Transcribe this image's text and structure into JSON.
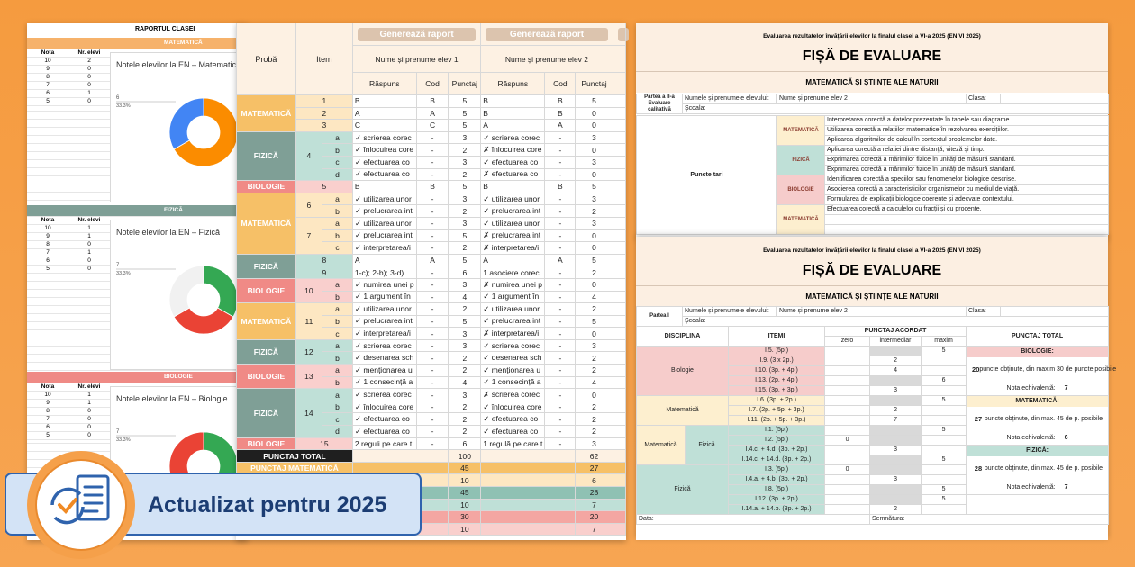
{
  "badge": "Actualizat pentru 2025",
  "class_report": {
    "title": "RAPORTUL CLASEI",
    "col_grade": "Nota",
    "col_count": "Nr. elevi",
    "sections": [
      {
        "name": "MATEMATICĂ",
        "color": "#f6b26b",
        "chart_data": {
          "type": "pie",
          "title": "Notele elevilor la EN – Matematică",
          "callout": [
            "6",
            "33.3%"
          ],
          "categories": [
            10,
            9,
            8,
            7,
            6,
            5
          ],
          "values": [
            2,
            0,
            0,
            0,
            1,
            0
          ],
          "colors": [
            "#fb8c00",
            "#ea4335",
            "#fbbc04",
            "#34a853",
            "#4285f4",
            "#9e9e9e"
          ]
        }
      },
      {
        "name": "FIZICĂ",
        "color": "#7f9f96",
        "chart_data": {
          "type": "pie",
          "title": "Notele elevilor la EN – Fizică",
          "callout": [
            "7",
            "33.3%"
          ],
          "categories": [
            10,
            9,
            8,
            7,
            6,
            5
          ],
          "values": [
            1,
            1,
            0,
            1,
            0,
            0
          ],
          "colors": [
            "#34a853",
            "#ea4335",
            "#fbbc04",
            "#f1f1f1",
            "#4285f4",
            "#9e9e9e"
          ]
        }
      },
      {
        "name": "BIOLOGIE",
        "color": "#ef8a85",
        "chart_data": {
          "type": "pie",
          "title": "Notele elevilor la EN – Biologie",
          "callout": [
            "7",
            "33.3%"
          ],
          "categories": [
            10,
            9,
            8,
            7,
            6,
            5
          ],
          "values": [
            1,
            1,
            0,
            0,
            0,
            0
          ],
          "colors": [
            "#34a853",
            "#ea4335",
            "#fbbc04",
            "#f1f1f1",
            "#4285f4",
            "#9e9e9e"
          ]
        }
      }
    ]
  },
  "score_table": {
    "buttons": [
      "Generează raport",
      "Generează raport"
    ],
    "col_subject": "Probă",
    "col_item": "Item",
    "students": [
      {
        "name": "Nume și prenume elev 1"
      },
      {
        "name": "Nume și prenume elev 2"
      }
    ],
    "col_answer": "Răspuns",
    "col_code": "Cod",
    "col_points": "Punctaj",
    "subject_colors": {
      "MATEMATICĂ": [
        "#f6c067",
        "#fde7c2"
      ],
      "FIZICĂ": [
        "#7f9f96",
        "#bfe0d7"
      ],
      "BIOLOGIE": [
        "#f08a86",
        "#f9cfcd"
      ]
    },
    "rows": [
      {
        "subject": "MATEMATICĂ",
        "item": 1,
        "part": null,
        "answers": [
          [
            "B",
            "B",
            5
          ],
          [
            "B",
            "B",
            5
          ]
        ]
      },
      {
        "subject": null,
        "item": 2,
        "part": null,
        "answers": [
          [
            "A",
            "A",
            5
          ],
          [
            "B",
            "B",
            0
          ]
        ]
      },
      {
        "subject": null,
        "item": 3,
        "part": null,
        "answers": [
          [
            "C",
            "C",
            5
          ],
          [
            "A",
            "A",
            0
          ]
        ]
      },
      {
        "subject": "FIZICĂ",
        "item": 4,
        "part": "a",
        "answers": [
          [
            "✓ scrierea corec",
            "-",
            3
          ],
          [
            "✓ scrierea corec",
            "-",
            3
          ]
        ]
      },
      {
        "subject": null,
        "item": null,
        "part": "b",
        "answers": [
          [
            "✓ înlocuirea core",
            "-",
            2
          ],
          [
            "✗ înlocuirea core",
            "-",
            0
          ]
        ]
      },
      {
        "subject": null,
        "item": null,
        "part": "c",
        "answers": [
          [
            "✓ efectuarea co",
            "-",
            3
          ],
          [
            "✓ efectuarea co",
            "-",
            3
          ]
        ]
      },
      {
        "subject": null,
        "item": null,
        "part": "d",
        "answers": [
          [
            "✓ efectuarea co",
            "-",
            2
          ],
          [
            "✗ efectuarea co",
            "-",
            0
          ]
        ]
      },
      {
        "subject": "BIOLOGIE",
        "item": 5,
        "part": null,
        "answers": [
          [
            "B",
            "B",
            5
          ],
          [
            "B",
            "B",
            5
          ]
        ]
      },
      {
        "subject": "MATEMATICĂ",
        "item": 6,
        "part": "a",
        "answers": [
          [
            "✓ utilizarea unor",
            "-",
            3
          ],
          [
            "✓ utilizarea unor",
            "-",
            3
          ]
        ]
      },
      {
        "subject": null,
        "item": null,
        "part": "b",
        "answers": [
          [
            "✓ prelucrarea int",
            "-",
            2
          ],
          [
            "✓ prelucrarea int",
            "-",
            2
          ]
        ]
      },
      {
        "subject": null,
        "item": 7,
        "part": "a",
        "answers": [
          [
            "✓ utilizarea unor",
            "-",
            3
          ],
          [
            "✓ utilizarea unor",
            "-",
            3
          ]
        ]
      },
      {
        "subject": null,
        "item": null,
        "part": "b",
        "answers": [
          [
            "✓ prelucrarea int",
            "-",
            5
          ],
          [
            "✗ prelucrarea int",
            "-",
            0
          ]
        ]
      },
      {
        "subject": null,
        "item": null,
        "part": "c",
        "answers": [
          [
            "✓ interpretarea/i",
            "-",
            2
          ],
          [
            "✗ interpretarea/i",
            "-",
            0
          ]
        ]
      },
      {
        "subject": "FIZICĂ",
        "item": 8,
        "part": null,
        "answers": [
          [
            "A",
            "A",
            5
          ],
          [
            "A",
            "A",
            5
          ]
        ]
      },
      {
        "subject": null,
        "item": 9,
        "part": null,
        "answers": [
          [
            "1-c); 2-b); 3-d)",
            "-",
            6
          ],
          [
            "1 asociere corec",
            "-",
            2
          ]
        ]
      },
      {
        "subject": "BIOLOGIE",
        "item": 10,
        "part": "a",
        "answers": [
          [
            "✓ numirea unei p",
            "-",
            3
          ],
          [
            "✗ numirea unei p",
            "-",
            0
          ]
        ]
      },
      {
        "subject": null,
        "item": null,
        "part": "b",
        "answers": [
          [
            "✓ 1 argument în",
            "-",
            4
          ],
          [
            "✓ 1 argument în",
            "-",
            4
          ]
        ]
      },
      {
        "subject": "MATEMATICĂ",
        "item": 11,
        "part": "a",
        "answers": [
          [
            "✓ utilizarea unor",
            "-",
            2
          ],
          [
            "✓ utilizarea unor",
            "-",
            2
          ]
        ]
      },
      {
        "subject": null,
        "item": null,
        "part": "b",
        "answers": [
          [
            "✓ prelucrarea int",
            "-",
            5
          ],
          [
            "✓ prelucrarea int",
            "-",
            5
          ]
        ]
      },
      {
        "subject": null,
        "item": null,
        "part": "c",
        "answers": [
          [
            "✓ interpretarea/i",
            "-",
            3
          ],
          [
            "✗ interpretarea/i",
            "-",
            0
          ]
        ]
      },
      {
        "subject": "FIZICĂ",
        "item": 12,
        "part": "a",
        "answers": [
          [
            "✓ scrierea corec",
            "-",
            3
          ],
          [
            "✓ scrierea corec",
            "-",
            3
          ]
        ]
      },
      {
        "subject": null,
        "item": null,
        "part": "b",
        "answers": [
          [
            "✓ desenarea sch",
            "-",
            2
          ],
          [
            "✓ desenarea sch",
            "-",
            2
          ]
        ]
      },
      {
        "subject": "BIOLOGIE",
        "item": 13,
        "part": "a",
        "answers": [
          [
            "✓ menționarea u",
            "-",
            2
          ],
          [
            "✓ menționarea u",
            "-",
            2
          ]
        ]
      },
      {
        "subject": null,
        "item": null,
        "part": "b",
        "answers": [
          [
            "✓ 1 consecință a",
            "-",
            4
          ],
          [
            "✓ 1 consecință a",
            "-",
            4
          ]
        ]
      },
      {
        "subject": "FIZICĂ",
        "item": 14,
        "part": "a",
        "answers": [
          [
            "✓ scrierea corec",
            "-",
            3
          ],
          [
            "✗ scrierea corec",
            "-",
            0
          ]
        ]
      },
      {
        "subject": null,
        "item": null,
        "part": "b",
        "answers": [
          [
            "✓ înlocuirea core",
            "-",
            2
          ],
          [
            "✓ înlocuirea core",
            "-",
            2
          ]
        ]
      },
      {
        "subject": null,
        "item": null,
        "part": "c",
        "answers": [
          [
            "✓ efectuarea co",
            "-",
            2
          ],
          [
            "✓ efectuarea co",
            "-",
            2
          ]
        ]
      },
      {
        "subject": null,
        "item": null,
        "part": "d",
        "answers": [
          [
            "✓ efectuarea co",
            "-",
            2
          ],
          [
            "✓ efectuarea co",
            "-",
            2
          ]
        ]
      },
      {
        "subject": "BIOLOGIE",
        "item": 15,
        "part": null,
        "answers": [
          [
            "2 reguli pe care t",
            "-",
            6
          ],
          [
            "1 regulă pe care t",
            "-",
            3
          ]
        ]
      }
    ],
    "totals": [
      {
        "label": "PUNCTAJ TOTAL",
        "color": "#fdf1e3",
        "values": [
          100,
          62
        ]
      },
      {
        "label": "PUNCTAJ MATEMATICĂ",
        "color": "#f6c067",
        "values": [
          45,
          27
        ]
      },
      {
        "label": null,
        "color": "#fde7c2",
        "values": [
          10,
          6
        ]
      },
      {
        "label": null,
        "color": "#8fc1b3",
        "values": [
          45,
          28
        ]
      },
      {
        "label": null,
        "color": "#bfe0d7",
        "values": [
          10,
          7
        ]
      },
      {
        "label": null,
        "color": "#f4a6a2",
        "values": [
          30,
          20
        ]
      },
      {
        "label": null,
        "color": "#f9cfcd",
        "values": [
          10,
          7
        ]
      }
    ]
  },
  "sheet_top": {
    "heading": "Evaluarea rezultatelor învățării elevilor la finalul clasei a VI-a 2025 (EN VI 2025)",
    "title": "FIȘĂ DE EVALUARE",
    "subtitle": "MATEMATICĂ ȘI ȘTIINȚE ALE NATURII",
    "part": "Partea a II-a Evaluare calitativă",
    "student_label": "Numele și prenumele elevului:",
    "student": "Nume și prenume elev 2",
    "class_label": "Clasa:",
    "school_label": "Școala:",
    "strengths_label": "Puncte tari",
    "strengths": [
      {
        "subject": "MATEMATICĂ",
        "color": "#fdefcf",
        "items": [
          "Interpretarea corectă a datelor prezentate în tabele sau diagrame.",
          "Utilizarea corectă a relațiilor matematice în rezolvarea exercițiilor.",
          "Aplicarea algoritmilor de calcul în contextul problemelor date."
        ]
      },
      {
        "subject": "FIZICĂ",
        "color": "#bfe0d7",
        "items": [
          "Aplicarea corectă a relației dintre distanță, viteză și timp.",
          "Exprimarea corectă a mărimilor fizice în unități de măsură standard.",
          "Exprimarea corectă a mărimilor fizice în unități de măsură standard."
        ]
      },
      {
        "subject": "BIOLOGIE",
        "color": "#f6cccb",
        "items": [
          "Identificarea corectă a speciilor sau fenomenelor biologice descrise.",
          "Asocierea corectă a caracteristicilor organismelor cu mediul de viață.",
          "Formularea de explicații biologice coerente și adecvate contextului."
        ]
      },
      {
        "subject": "MATEMATICĂ",
        "color": "#fdefcf",
        "items": [
          "Efectuarea corectă a calculelor cu fracții și cu procente."
        ]
      }
    ]
  },
  "sheet_bottom": {
    "heading": "Evaluarea rezultatelor învățării elevilor la finalul clasei a VI-a 2025 (EN VI 2025)",
    "title": "FIȘĂ DE EVALUARE",
    "subtitle": "MATEMATICĂ ȘI ȘTIINȚE ALE NATURII",
    "part": "Partea I",
    "student_label": "Numele și prenumele elevului:",
    "student": "Nume și prenume elev 2",
    "class_label": "Clasa:",
    "school_label": "Școala:",
    "col_discipline": "DISCIPLINA",
    "col_items": "ITEMI",
    "col_awarded": "PUNCTAJ ACORDAT",
    "col_zero": "zero",
    "col_mid": "intermediar",
    "col_max": "maxim",
    "col_total": "PUNCTAJ TOTAL",
    "groups": [
      {
        "name": "Biologie",
        "color": "#f6cccb",
        "sub": null,
        "sub_color": null,
        "items": [
          {
            "item": "I.5. (5p.)",
            "scores": [
              null,
              null,
              5
            ]
          },
          {
            "item": "I.9. (3 x 2p.)",
            "scores": [
              null,
              2,
              null
            ]
          },
          {
            "item": "I.10. (3p. + 4p.)",
            "scores": [
              null,
              4,
              null
            ]
          },
          {
            "item": "I.13. (2p. + 4p.)",
            "scores": [
              null,
              null,
              6
            ]
          },
          {
            "item": "I.15. (3p. + 3p.)",
            "scores": [
              null,
              3,
              null
            ]
          }
        ]
      },
      {
        "name": "Matematică",
        "color": "#fdefcf",
        "sub": null,
        "sub_color": null,
        "items": [
          {
            "item": "I.6. (3p. + 2p.)",
            "scores": [
              null,
              null,
              5
            ]
          },
          {
            "item": "I.7. (2p. + 5p. + 3p.)",
            "scores": [
              null,
              2,
              null
            ]
          },
          {
            "item": "I.11. (2p. + 5p. + 3p.)",
            "scores": [
              null,
              7,
              null
            ]
          }
        ]
      },
      {
        "name": "Matematică",
        "color": "#fdefcf",
        "sub": "Fizică",
        "sub_color": "#bfe0d7",
        "items": [
          {
            "item": "I.1. (5p.)",
            "scores": [
              null,
              null,
              5
            ]
          },
          {
            "item": "I.2. (5p.)",
            "scores": [
              0,
              null,
              null
            ]
          },
          {
            "item": "I.4.c. + 4.d. (3p. + 2p.)",
            "scores": [
              null,
              3,
              null
            ]
          },
          {
            "item": "I.14.c. + 14.d. (3p. + 2p.)",
            "scores": [
              null,
              null,
              5
            ]
          }
        ]
      },
      {
        "name": "Fizică",
        "color": "#bfe0d7",
        "sub": null,
        "sub_color": null,
        "items": [
          {
            "item": "I.3. (5p.)",
            "scores": [
              0,
              null,
              null
            ]
          },
          {
            "item": "I.4.a. + 4.b. (3p. + 2p.)",
            "scores": [
              null,
              3,
              null
            ]
          },
          {
            "item": "I.8. (5p.)",
            "scores": [
              null,
              null,
              5
            ]
          },
          {
            "item": "I.12. (3p. + 2p.)",
            "scores": [
              null,
              null,
              5
            ]
          },
          {
            "item": "I.14.a. + 14.b. (3p. + 2p.)",
            "scores": [
              null,
              2,
              null
            ]
          }
        ]
      }
    ],
    "totals": [
      {
        "name": "BIOLOGIE:",
        "color": "#f6cccb",
        "points": 20,
        "note": "puncte obținute, din maxim 30 de puncte posibile",
        "grade_label": "Nota echivalentă:",
        "grade": 7
      },
      {
        "name": "MATEMATICĂ:",
        "color": "#fdefcf",
        "points": 27,
        "note": "puncte obținute, din max. 45 de p. posibile",
        "grade_label": "Nota echivalentă:",
        "grade": 6
      },
      {
        "name": "FIZICĂ:",
        "color": "#bfe0d7",
        "points": 28,
        "note": "puncte obținute, din max. 45 de p. posibile",
        "grade_label": "Nota echivalentă:",
        "grade": 7
      }
    ],
    "date_label": "Data:",
    "signature_label": "Semnătura:"
  }
}
